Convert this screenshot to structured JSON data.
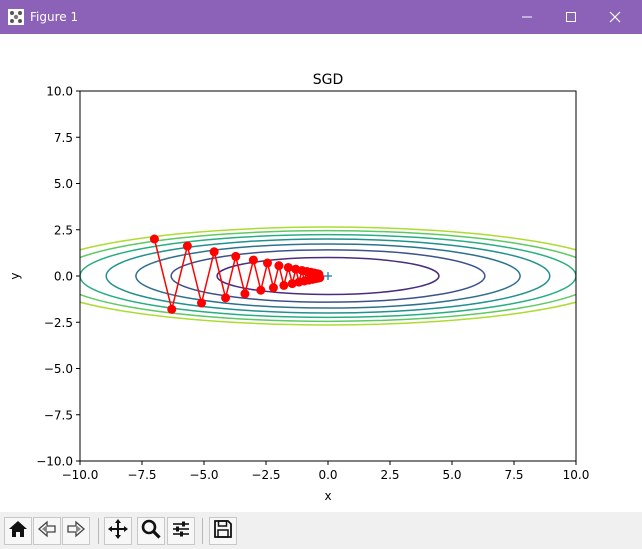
{
  "window": {
    "title": "Figure 1",
    "accent_color": "#8b62b8",
    "controls": [
      "minimize-icon",
      "maximize-icon",
      "close-icon"
    ]
  },
  "toolbar": {
    "buttons": [
      "home-icon",
      "back-icon",
      "forward-icon",
      "pan-icon",
      "zoom-icon",
      "configure-subplots-icon",
      "save-icon"
    ]
  },
  "chart_data": {
    "type": "line",
    "title": "SGD",
    "xlabel": "x",
    "ylabel": "y",
    "xlim": [
      -10,
      10
    ],
    "ylim": [
      -10,
      10
    ],
    "xticks": [
      "−10.0",
      "−7.5",
      "−5.0",
      "−2.5",
      "0.0",
      "2.5",
      "5.0",
      "7.5",
      "10.0"
    ],
    "yticks": [
      "10.0",
      "7.5",
      "5.0",
      "2.5",
      "0.0",
      "−2.5",
      "−5.0",
      "−7.5",
      "−10.0"
    ],
    "xtick_values": [
      -10,
      -7.5,
      -5,
      -2.5,
      0,
      2.5,
      5,
      7.5,
      10
    ],
    "ytick_values": [
      10,
      7.5,
      5,
      2.5,
      0,
      -2.5,
      -5,
      -7.5,
      -10
    ],
    "grid": false,
    "contour": {
      "function": "x^2/20 + y^2",
      "levels": [
        1,
        2,
        3,
        4,
        5,
        6,
        7
      ],
      "colors": [
        "#472d7b",
        "#3b528b",
        "#2c728e",
        "#21918c",
        "#28ae80",
        "#5ec962",
        "#addc30"
      ]
    },
    "minimum_marker": {
      "x": 0,
      "y": 0,
      "color": "#1f77b4"
    },
    "path_color": "#ff0000",
    "path": [
      {
        "x": -7.0,
        "y": 2.0
      },
      {
        "x": -6.3,
        "y": -1.8
      },
      {
        "x": -5.67,
        "y": 1.62
      },
      {
        "x": -5.1,
        "y": -1.46
      },
      {
        "x": -4.59,
        "y": 1.31
      },
      {
        "x": -4.13,
        "y": -1.18
      },
      {
        "x": -3.72,
        "y": 1.06
      },
      {
        "x": -3.35,
        "y": -0.96
      },
      {
        "x": -3.01,
        "y": 0.86
      },
      {
        "x": -2.71,
        "y": -0.77
      },
      {
        "x": -2.44,
        "y": 0.7
      },
      {
        "x": -2.2,
        "y": -0.63
      },
      {
        "x": -1.98,
        "y": 0.56
      },
      {
        "x": -1.78,
        "y": -0.51
      },
      {
        "x": -1.6,
        "y": 0.46
      },
      {
        "x": -1.44,
        "y": -0.41
      },
      {
        "x": -1.3,
        "y": 0.37
      },
      {
        "x": -1.17,
        "y": -0.33
      },
      {
        "x": -1.05,
        "y": 0.3
      },
      {
        "x": -0.95,
        "y": -0.27
      },
      {
        "x": -0.85,
        "y": 0.24
      },
      {
        "x": -0.77,
        "y": -0.22
      },
      {
        "x": -0.69,
        "y": 0.2
      },
      {
        "x": -0.62,
        "y": -0.18
      },
      {
        "x": -0.56,
        "y": 0.16
      },
      {
        "x": -0.5,
        "y": -0.14
      },
      {
        "x": -0.45,
        "y": 0.13
      },
      {
        "x": -0.41,
        "y": -0.12
      },
      {
        "x": -0.37,
        "y": 0.1
      },
      {
        "x": -0.33,
        "y": -0.09
      }
    ]
  }
}
